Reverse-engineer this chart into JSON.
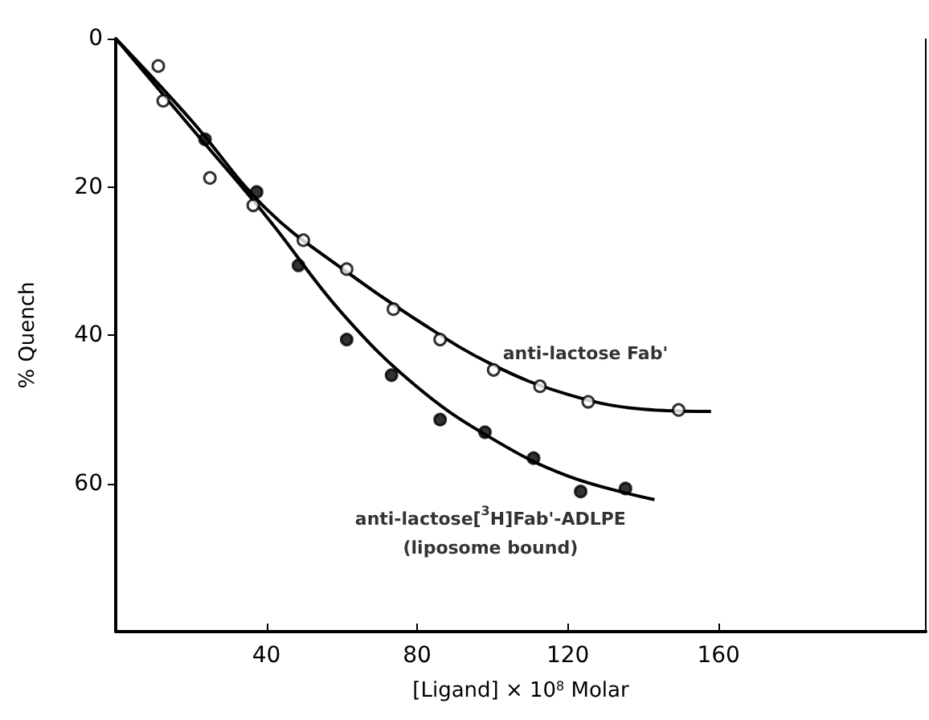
{
  "chart_data": {
    "type": "scatter",
    "xlabel": "[Ligand] × 10$^{8}$ Molar",
    "ylabel": "% Quench",
    "xlim": [
      0,
      215
    ],
    "xticks": [
      40,
      80,
      120,
      160
    ],
    "ylim": [
      80,
      0
    ],
    "yticks": [
      0,
      20,
      40,
      60
    ],
    "grid": false,
    "series": [
      {
        "name": "anti-lactose Fab'",
        "marker": "circle",
        "color": "#000000",
        "x": [
          11.3,
          12.6,
          25,
          36.5,
          49.8,
          61.3,
          73.7,
          86.1,
          100.3,
          112.6,
          125.4,
          149.4
        ],
        "values": [
          3.7,
          8.4,
          18.8,
          22.5,
          27.2,
          31.1,
          36.5,
          40.6,
          44.7,
          46.9,
          49,
          50.1
        ]
      },
      {
        "name": "anti-lactose[$^{3}$H]Fab'-ADLPE\n(liposome bound)",
        "marker": "circle",
        "color": "#000000",
        "x": [
          23.7,
          37.4,
          48.5,
          61.3,
          73.2,
          86.1,
          98,
          110.9,
          123.4,
          135.3
        ],
        "values": [
          13.6,
          20.7,
          30.6,
          40.6,
          45.4,
          51.4,
          53.1,
          56.6,
          61.1,
          60.7
        ]
      },
      {
        "type": "line",
        "marker": "none",
        "color": "#000000",
        "x": [
          0,
          20,
          40,
          60,
          80,
          100,
          120,
          140,
          158
        ],
        "values": [
          0,
          11,
          23,
          31,
          38,
          44,
          48,
          50,
          50.3
        ]
      },
      {
        "type": "line",
        "marker": "none",
        "color": "#000000",
        "x": [
          0,
          20,
          40,
          60,
          80,
          100,
          120,
          143
        ],
        "values": [
          0,
          12,
          24,
          37,
          47,
          54,
          59,
          62.2
        ]
      }
    ]
  }
}
